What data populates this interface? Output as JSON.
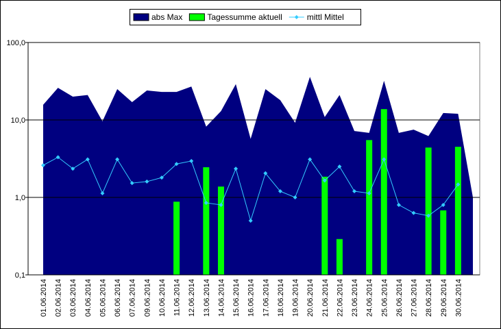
{
  "chart_data": {
    "type": "combo",
    "categories": [
      "01.06.2014",
      "02.06.2014",
      "03.06.2014",
      "04.06.2014",
      "05.06.2014",
      "06.06.2014",
      "07.06.2014",
      "09.06.2014",
      "10.06.2014",
      "11.06.2014",
      "12.06.2014",
      "13.06.2014",
      "14.06.2014",
      "15.06.2014",
      "16.06.2014",
      "17.06.2014",
      "18.06.2014",
      "19.06.2014",
      "20.06.2014",
      "21.06.2014",
      "22.06.2014",
      "23.06.2014",
      "24.06.2014",
      "25.06.2014",
      "26.06.2014",
      "27.06.2014",
      "28.06.2014",
      "29.06.2014",
      "30.06.2014",
      null
    ],
    "series": [
      {
        "name": "abs Max",
        "type": "area",
        "color": "#000080",
        "values": [
          15.7,
          26,
          20,
          21,
          9.6,
          25,
          17,
          24,
          23,
          23,
          27,
          8.2,
          13,
          29,
          5.7,
          25,
          18,
          9.2,
          36,
          10.9,
          21,
          7.2,
          6.8,
          32,
          6.8,
          7.5,
          6.2,
          12.3,
          12,
          1.0
        ]
      },
      {
        "name": "Tagessumme aktuell",
        "type": "bar",
        "color": "#00ff00",
        "values": [
          null,
          null,
          null,
          null,
          null,
          null,
          null,
          null,
          null,
          0.88,
          null,
          2.45,
          1.38,
          null,
          null,
          null,
          null,
          null,
          null,
          1.85,
          0.29,
          null,
          5.5,
          13.8,
          null,
          null,
          4.4,
          0.68,
          4.5,
          null
        ]
      },
      {
        "name": "mittl Mittel",
        "type": "line",
        "color": "#33ccff",
        "values": [
          2.6,
          3.3,
          2.35,
          3.1,
          1.13,
          3.1,
          1.53,
          1.6,
          1.8,
          2.7,
          2.95,
          0.85,
          0.8,
          2.35,
          0.5,
          2.05,
          1.2,
          1.0,
          3.1,
          1.65,
          2.5,
          1.2,
          1.13,
          3.1,
          0.8,
          0.63,
          0.58,
          0.8,
          1.47,
          null
        ]
      }
    ],
    "ylim": [
      0.1,
      100
    ],
    "yticks": [
      {
        "value": 0.1,
        "label": "0,1"
      },
      {
        "value": 1,
        "label": "1,0"
      },
      {
        "value": 10,
        "label": "10,0"
      },
      {
        "value": 100,
        "label": "100,0"
      }
    ],
    "log_scale": true,
    "grid": true,
    "legend": "top"
  }
}
